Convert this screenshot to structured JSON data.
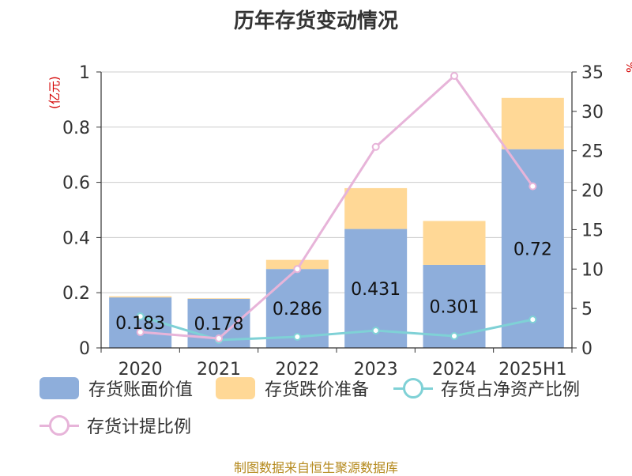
{
  "title": "历年存货变动情况",
  "left_unit": "(亿元)",
  "right_unit": "%",
  "footer": "制图数据来自恒生聚源数据库",
  "colors": {
    "book_value": "#8eaedb",
    "reserve": "#ffd896",
    "net_asset_ratio": "#7fd1d6",
    "provision_ratio": "#e7b4d9",
    "axis": "#333333",
    "grid": "#cccccc"
  },
  "chart_data": {
    "type": "bar",
    "categories": [
      "2020",
      "2021",
      "2022",
      "2023",
      "2024",
      "2025H1"
    ],
    "y_left": {
      "range": [
        0,
        1
      ],
      "ticks": [
        "0",
        "0.2",
        "0.4",
        "0.6",
        "0.8",
        "1"
      ]
    },
    "y_right": {
      "range": [
        0,
        35
      ],
      "ticks": [
        "0",
        "5",
        "10",
        "15",
        "20",
        "25",
        "30",
        "35"
      ]
    },
    "series": [
      {
        "name": "存货账面价值",
        "kind": "bar",
        "axis": "left",
        "stack": "inventory",
        "values": [
          0.183,
          0.178,
          0.286,
          0.431,
          0.301,
          0.72
        ],
        "labels": [
          "0.183",
          "0.178",
          "0.286",
          "0.431",
          "0.301",
          "0.72"
        ]
      },
      {
        "name": "存货跌价准备",
        "kind": "bar",
        "axis": "left",
        "stack": "inventory",
        "values": [
          0.004,
          0.002,
          0.033,
          0.148,
          0.159,
          0.186
        ]
      },
      {
        "name": "存货占净资产比例",
        "kind": "line",
        "axis": "right",
        "values": [
          4.0,
          1.0,
          1.4,
          2.2,
          1.5,
          3.6
        ]
      },
      {
        "name": "存货计提比例",
        "kind": "line",
        "axis": "right",
        "values": [
          2.0,
          1.2,
          10.0,
          25.5,
          34.5,
          20.5
        ]
      }
    ],
    "grid": true,
    "legend_position": "bottom"
  }
}
